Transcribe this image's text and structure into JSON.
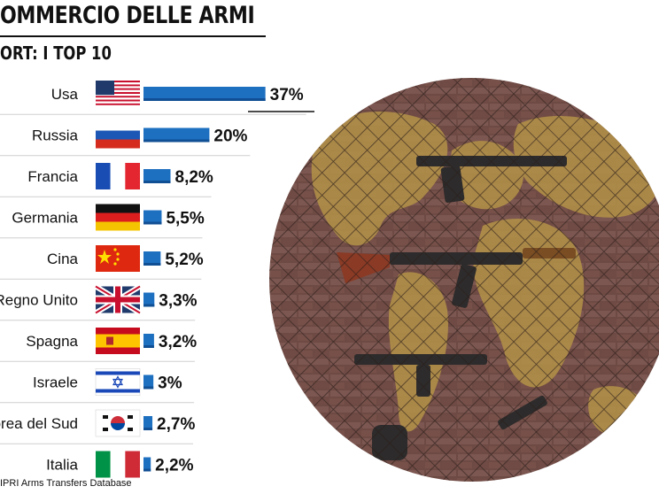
{
  "header": {
    "title": "OMMERCIO DELLE ARMI",
    "subtitle": "ORT: I TOP 10"
  },
  "source": "IPRI Arms Transfers Database",
  "colors": {
    "bar": "#1d6fc0",
    "bar_dark": "#114f94",
    "text": "#111111",
    "separator": "#cfcfcf"
  },
  "chart_data": {
    "type": "bar",
    "orientation": "horizontal",
    "categories": [
      "Usa",
      "Russia",
      "Francia",
      "Germania",
      "Cina",
      "Regno Unito",
      "Spagna",
      "Israele",
      "orea del Sud",
      "Italia"
    ],
    "values": [
      37,
      20,
      8.2,
      5.5,
      5.2,
      3.3,
      3.2,
      3,
      2.7,
      2.2
    ],
    "value_labels": [
      "37%",
      "20%",
      "8,2%",
      "5,5%",
      "5,2%",
      "3,3%",
      "3,2%",
      "3%",
      "2,7%",
      "2,2%"
    ],
    "flags": [
      "usa-flag-icon",
      "russia-flag-icon",
      "france-flag-icon",
      "germany-flag-icon",
      "china-flag-icon",
      "uk-flag-icon",
      "spain-flag-icon",
      "israel-flag-icon",
      "south-korea-flag-icon",
      "italy-flag-icon"
    ],
    "title": "OMMERCIO DELLE ARMI",
    "subtitle": "ORT: I TOP 10",
    "xlabel": "",
    "ylabel": "",
    "grid": false,
    "legend": "none"
  },
  "illustration": {
    "description_icon": "world-map-weapons-illustration"
  }
}
